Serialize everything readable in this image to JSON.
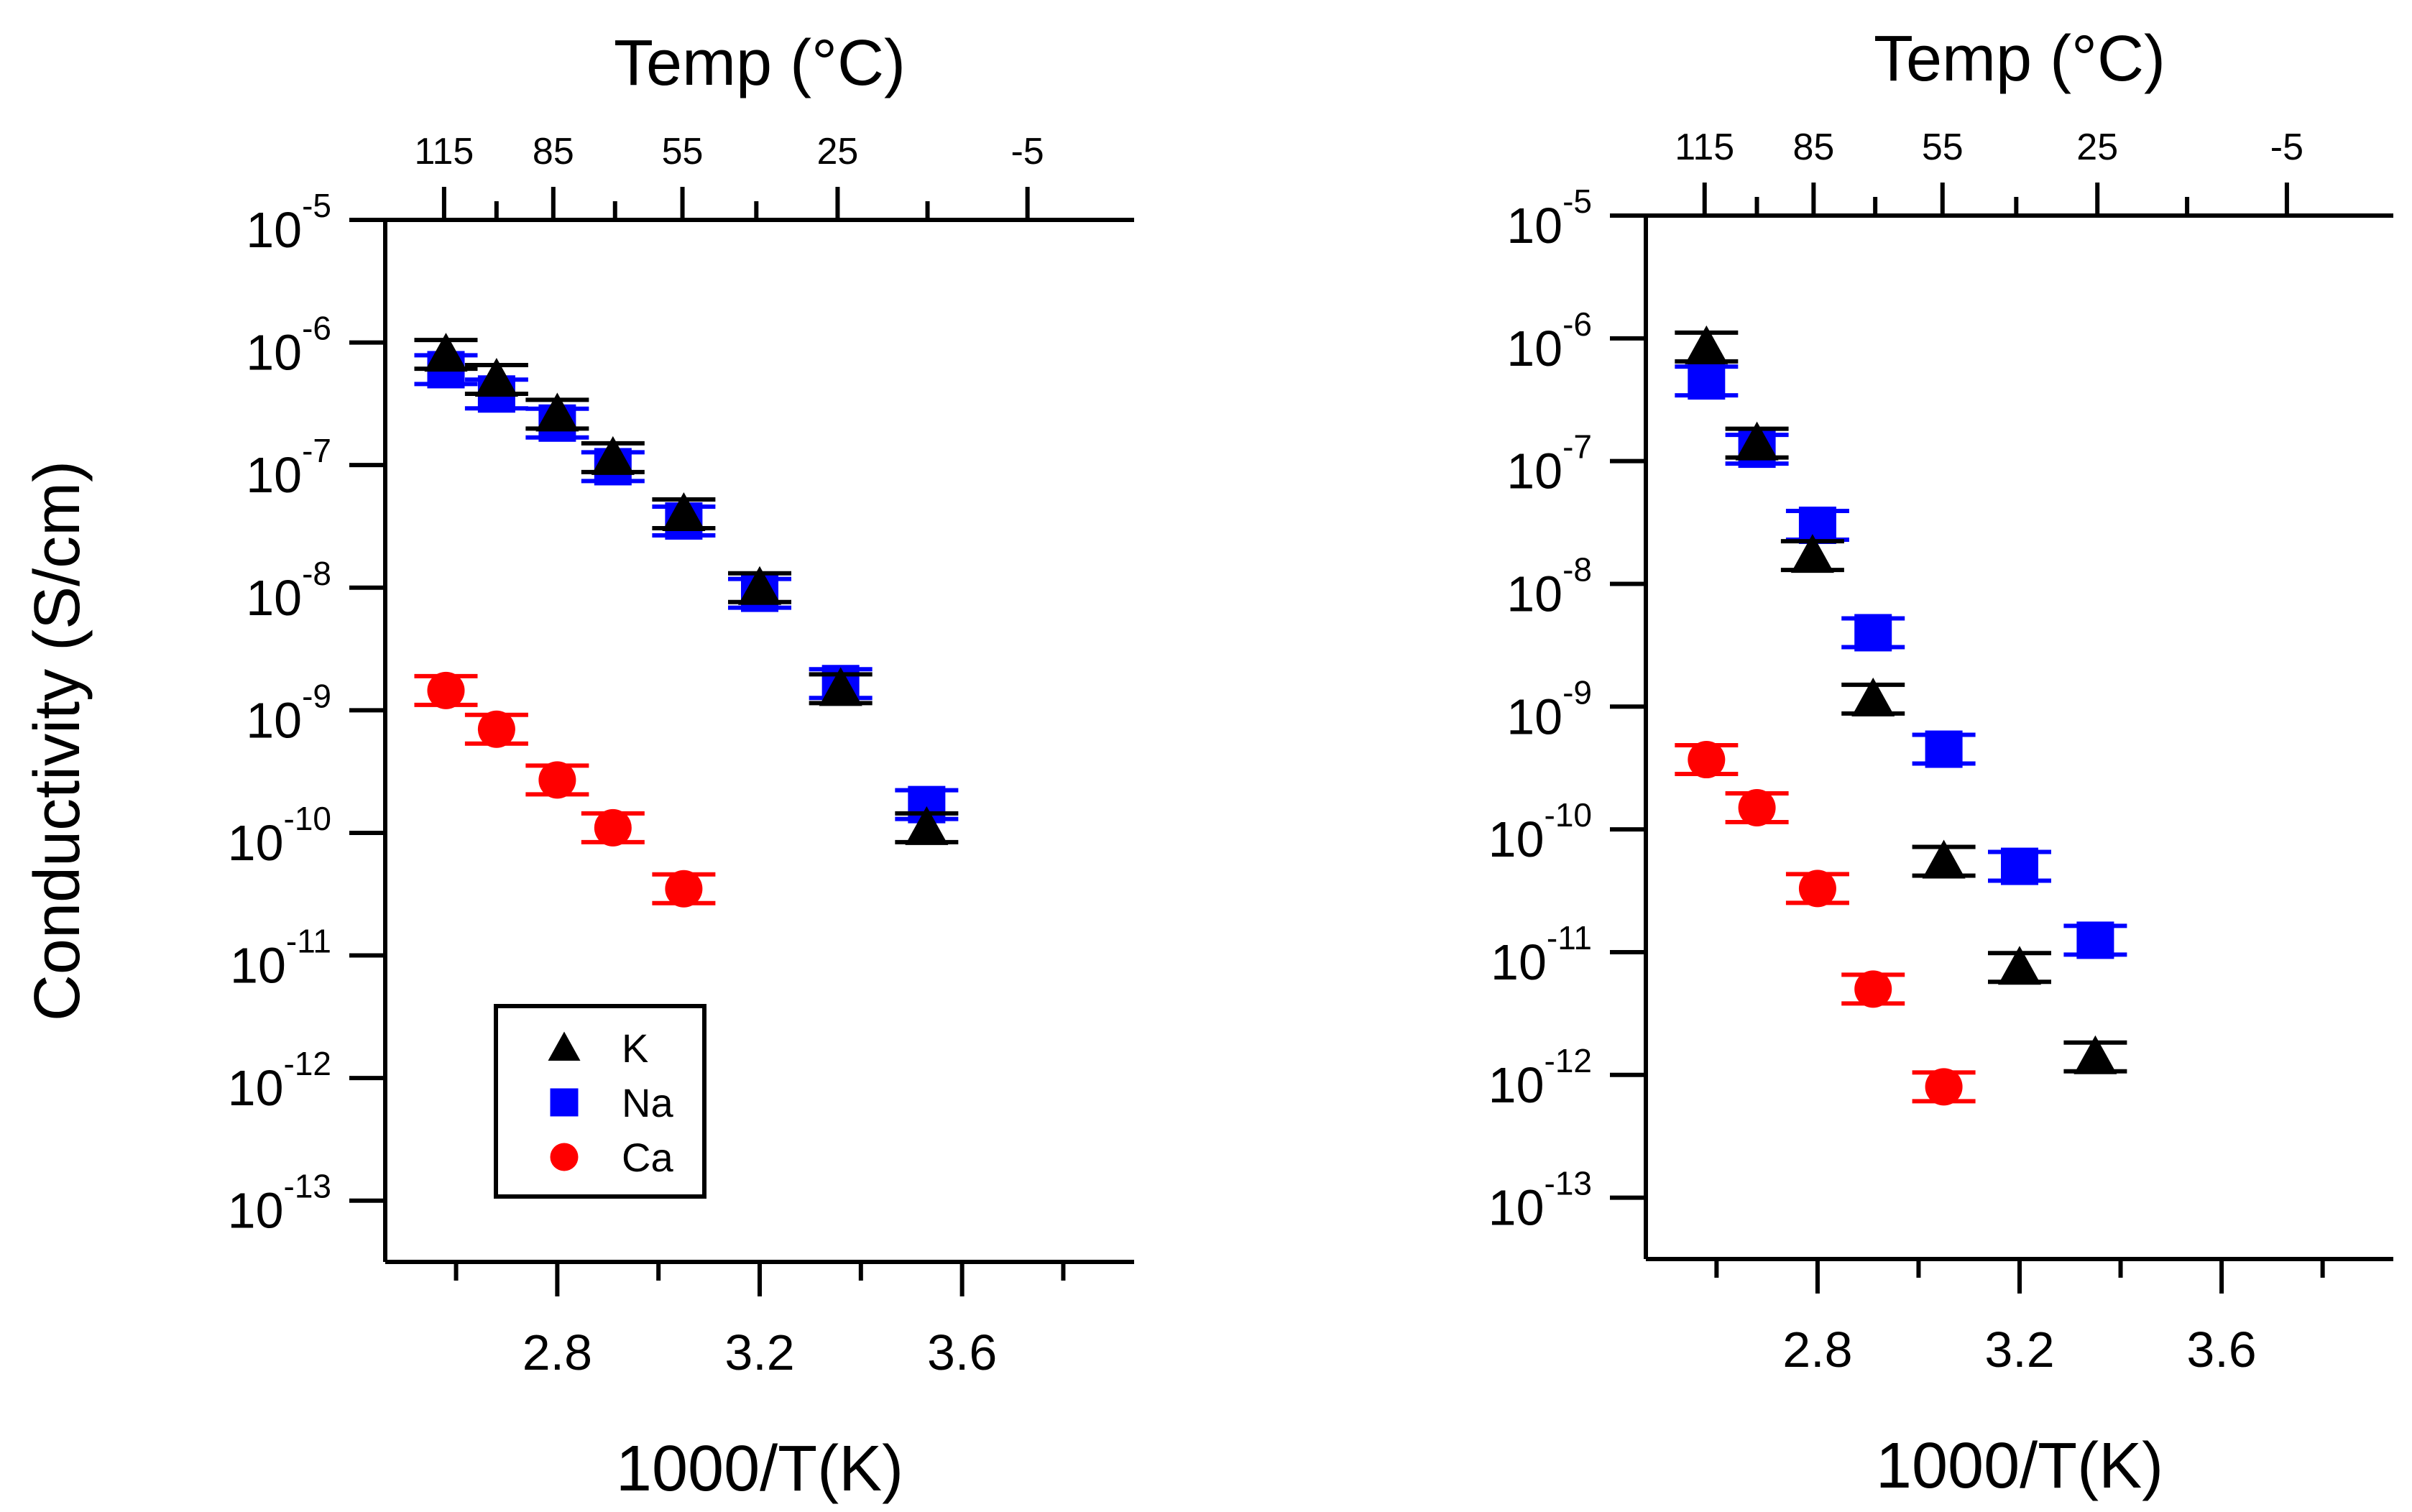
{
  "chart_data": [
    {
      "type": "scatter",
      "panel": "left",
      "title": "",
      "xlabel": "1000/T(K)",
      "ylabel": "Conductivity (S/cm)",
      "top_axis_label": "Temp (°C)",
      "xlim": [
        2.46,
        3.94
      ],
      "ylim_log10": [
        -13.5,
        -5
      ],
      "yscale": "log",
      "x_ticks": [
        2.8,
        3.2,
        3.6
      ],
      "x_tick_labels": [
        "2.8",
        "3.2",
        "3.6"
      ],
      "x_minor_ticks": [
        2.6,
        3.0,
        3.4,
        3.8
      ],
      "y_tick_exponents": [
        -5,
        -6,
        -7,
        -8,
        -9,
        -10,
        -11,
        -12,
        -13
      ],
      "top_tick_labels": [
        "115",
        "85",
        "55",
        "25",
        "-5"
      ],
      "top_tick_temps_c": [
        115,
        85,
        55,
        25,
        -5
      ],
      "top_minor_temps_c": [
        100,
        70,
        40,
        10,
        -20
      ],
      "grid": false,
      "legend": {
        "placement": "bottom-center",
        "entries": [
          "K",
          "Na",
          "Ca"
        ]
      },
      "series": [
        {
          "name": "K",
          "marker": "triangle",
          "color": "#000000",
          "x": [
            2.58,
            2.68,
            2.8,
            2.91,
            3.05,
            3.2,
            3.36,
            3.53
          ],
          "y": [
            8e-07,
            5e-07,
            2.6e-07,
            1.15e-07,
            4e-08,
            1e-08,
            1.5e-09,
            1.1e-10
          ]
        },
        {
          "name": "Na",
          "marker": "square",
          "color": "#0000ff",
          "x": [
            2.58,
            2.68,
            2.8,
            2.91,
            3.05,
            3.2,
            3.36,
            3.53
          ],
          "y": [
            6e-07,
            3.8e-07,
            2.2e-07,
            9.7e-08,
            3.5e-08,
            9e-09,
            1.65e-09,
            1.7e-10
          ]
        },
        {
          "name": "Ca",
          "marker": "circle",
          "color": "#ff0000",
          "x": [
            2.58,
            2.68,
            2.8,
            2.91,
            3.05
          ],
          "y": [
            1.45e-09,
            7e-10,
            2.7e-10,
            1.1e-10,
            3.5e-11
          ]
        }
      ]
    },
    {
      "type": "scatter",
      "panel": "right",
      "title": "",
      "xlabel": "1000/T(K)",
      "ylabel": "",
      "top_axis_label": "Temp (°C)",
      "xlim": [
        2.46,
        3.94
      ],
      "ylim_log10": [
        -13.5,
        -5
      ],
      "yscale": "log",
      "x_ticks": [
        2.8,
        3.2,
        3.6
      ],
      "x_tick_labels": [
        "2.8",
        "3.2",
        "3.6"
      ],
      "x_minor_ticks": [
        2.6,
        3.0,
        3.4,
        3.8
      ],
      "y_tick_exponents": [
        -5,
        -6,
        -7,
        -8,
        -9,
        -10,
        -11,
        -12,
        -13
      ],
      "top_tick_labels": [
        "115",
        "85",
        "55",
        "25",
        "-5"
      ],
      "top_tick_temps_c": [
        115,
        85,
        55,
        25,
        -5
      ],
      "top_minor_temps_c": [
        100,
        70,
        40,
        10,
        -20
      ],
      "grid": false,
      "legend": null,
      "series": [
        {
          "name": "K",
          "marker": "triangle",
          "color": "#000000",
          "x": [
            2.58,
            2.68,
            2.79,
            2.91,
            3.05,
            3.2,
            3.35
          ],
          "y": [
            8.5e-07,
            1.4e-07,
            1.7e-08,
            1.15e-09,
            5.5e-11,
            7.5e-12,
            1.4e-12
          ]
        },
        {
          "name": "Na",
          "marker": "square",
          "color": "#0000ff",
          "x": [
            2.58,
            2.68,
            2.8,
            2.91,
            3.05,
            3.2,
            3.35
          ],
          "y": [
            4.5e-07,
            1.25e-07,
            3e-08,
            4e-09,
            4.5e-10,
            5e-11,
            1.25e-11
          ]
        },
        {
          "name": "Ca",
          "marker": "circle",
          "color": "#ff0000",
          "x": [
            2.58,
            2.68,
            2.8,
            2.91,
            3.05
          ],
          "y": [
            3.7e-10,
            1.5e-10,
            3.3e-11,
            5e-12,
            8e-13
          ]
        }
      ]
    }
  ]
}
